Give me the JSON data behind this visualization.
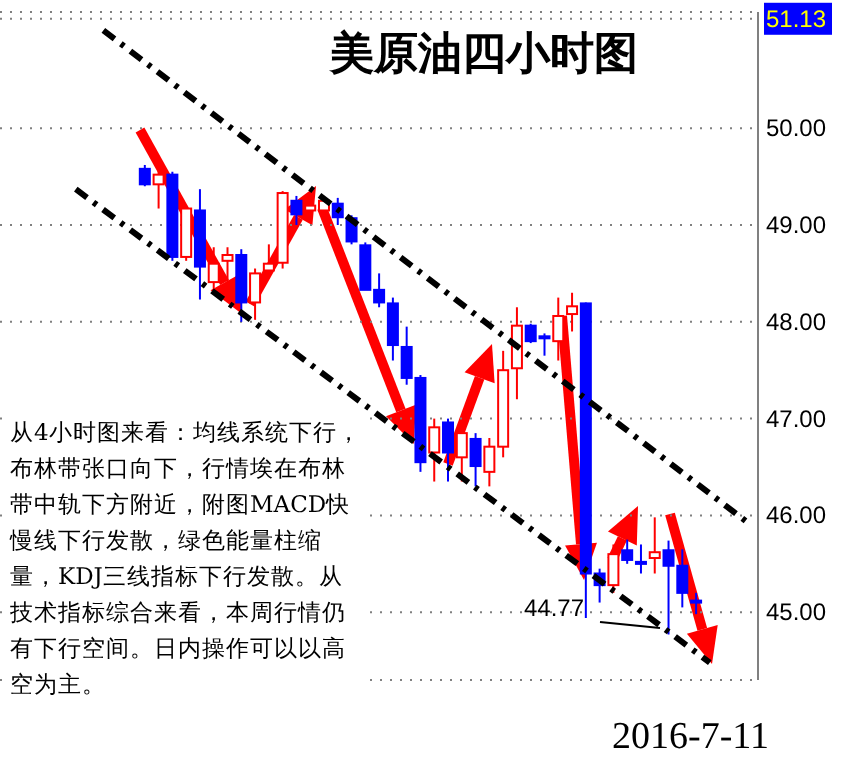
{
  "chart_data": {
    "type": "candlestick",
    "title": "美原油四小时图",
    "categories": [
      null,
      null,
      null,
      null,
      null,
      null,
      null,
      null,
      null,
      null,
      null,
      null,
      null,
      null,
      null,
      null,
      null,
      null,
      null,
      null,
      null,
      null,
      null,
      null,
      null,
      null,
      null,
      null,
      null,
      null,
      null,
      null,
      null,
      null,
      null,
      null,
      null,
      null,
      null,
      null,
      null,
      null,
      null,
      null,
      null,
      null,
      null,
      null,
      null,
      null,
      null,
      null,
      null,
      null,
      null
    ],
    "ohlc": [
      null,
      null,
      null,
      null,
      null,
      null,
      null,
      null,
      null,
      null,
      [
        49.58,
        49.62,
        49.4,
        49.42
      ],
      [
        49.42,
        49.6,
        49.17,
        49.52
      ],
      [
        49.52,
        49.55,
        48.63,
        48.67
      ],
      [
        48.67,
        49.2,
        48.63,
        49.17
      ],
      [
        49.15,
        49.37,
        48.23,
        48.57
      ],
      [
        48.41,
        48.77,
        48.3,
        48.6
      ],
      [
        48.63,
        48.77,
        48.23,
        48.69
      ],
      [
        48.69,
        48.75,
        48.0,
        48.2
      ],
      [
        48.2,
        48.55,
        48.02,
        48.5
      ],
      [
        48.53,
        48.8,
        48.45,
        48.6
      ],
      [
        48.61,
        49.35,
        48.55,
        49.33
      ],
      [
        49.25,
        49.3,
        49.0,
        49.11
      ],
      [
        49.15,
        49.3,
        49.1,
        49.2
      ],
      [
        49.15,
        49.3,
        49.05,
        49.25
      ],
      [
        49.22,
        49.28,
        49.0,
        49.08
      ],
      [
        49.07,
        49.1,
        48.8,
        48.83
      ],
      [
        48.79,
        48.82,
        48.33,
        48.33
      ],
      [
        48.33,
        48.5,
        48.15,
        48.2
      ],
      [
        48.19,
        48.25,
        47.6,
        47.76
      ],
      [
        47.74,
        47.95,
        47.35,
        47.42
      ],
      [
        47.42,
        47.45,
        46.45,
        46.55
      ],
      [
        46.65,
        47.0,
        46.35,
        46.91
      ],
      [
        46.96,
        47.0,
        46.35,
        46.65
      ],
      [
        46.6,
        46.9,
        46.35,
        46.85
      ],
      [
        46.79,
        46.85,
        46.3,
        46.51
      ],
      [
        46.45,
        46.8,
        46.3,
        46.71
      ],
      [
        46.71,
        47.7,
        46.6,
        47.5
      ],
      [
        47.52,
        48.15,
        47.2,
        47.96
      ],
      [
        47.96,
        47.98,
        47.78,
        47.8
      ],
      [
        47.85,
        47.88,
        47.65,
        47.84
      ],
      [
        47.8,
        48.25,
        47.6,
        48.06
      ],
      [
        48.08,
        48.3,
        47.9,
        48.16
      ],
      [
        48.19,
        48.2,
        44.94,
        45.4
      ],
      [
        45.4,
        45.45,
        45.1,
        45.28
      ],
      [
        45.28,
        45.7,
        45.2,
        45.6
      ],
      [
        45.64,
        45.75,
        45.5,
        45.54
      ],
      [
        45.52,
        45.7,
        45.4,
        45.5
      ],
      [
        45.56,
        45.98,
        45.4,
        45.62
      ],
      [
        45.64,
        45.74,
        44.77,
        45.48
      ],
      [
        45.48,
        45.65,
        45.05,
        45.2
      ],
      [
        45.12,
        45.2,
        44.98,
        45.1
      ],
      null,
      null,
      null,
      null
    ],
    "colors": [
      null,
      null,
      null,
      null,
      null,
      null,
      null,
      null,
      null,
      null,
      "#0000ff",
      "#ff0000",
      "#0000ff",
      "#ff0000",
      "#0000ff",
      "#ff0000",
      "#ff0000",
      "#0000ff",
      "#ff0000",
      "#ff0000",
      "#ff0000",
      "#0000ff",
      "#ff0000",
      "#ff0000",
      "#0000ff",
      "#0000ff",
      "#0000ff",
      "#0000ff",
      "#0000ff",
      "#0000ff",
      "#0000ff",
      "#ff0000",
      "#0000ff",
      "#ff0000",
      "#0000ff",
      "#ff0000",
      "#ff0000",
      "#ff0000",
      "#0000ff",
      "#0000ff",
      "#ff0000",
      "#ff0000",
      "#0000ff",
      "#0000ff",
      "#ff0000",
      "#0000ff",
      "#0000ff",
      "#ff0000",
      "#0000ff",
      "#0000ff",
      "#0000ff",
      null,
      null,
      null,
      null
    ],
    "series": [
      {
        "type": "line",
        "color": "#000000",
        "line_style": "dashed",
        "values": [
          null,
          null,
          null,
          null,
          null,
          null,
          null,
          51.01,
          null,
          null,
          null,
          null,
          null,
          null,
          null,
          null,
          null,
          null,
          null,
          null,
          null,
          null,
          null,
          null,
          null,
          null,
          null,
          null,
          null,
          null,
          null,
          null,
          null,
          null,
          null,
          null,
          null,
          null,
          null,
          null,
          null,
          null,
          null,
          null,
          null,
          null,
          null,
          null,
          null,
          null,
          null,
          null,
          null,
          null,
          45.9
        ]
      },
      {
        "type": "line",
        "color": "#000000",
        "line_style": "dashed",
        "values": [
          null,
          null,
          null,
          null,
          null,
          49.37,
          null,
          null,
          null,
          null,
          null,
          null,
          null,
          null,
          null,
          null,
          null,
          null,
          null,
          null,
          null,
          null,
          null,
          null,
          null,
          null,
          null,
          null,
          null,
          null,
          null,
          null,
          null,
          null,
          null,
          null,
          null,
          null,
          null,
          null,
          null,
          null,
          null,
          null,
          null,
          null,
          null,
          null,
          null,
          null,
          null,
          44.48,
          null,
          null,
          null
        ]
      }
    ],
    "ylim": [
      44.3,
      51.2
    ],
    "yticks": [
      {
        "value": 45,
        "label": "45.00"
      },
      {
        "value": 46,
        "label": "46.00"
      },
      {
        "value": 47,
        "label": "47.00"
      },
      {
        "value": 48,
        "label": "48.00"
      },
      {
        "value": 49,
        "label": "49.00"
      },
      {
        "value": 50,
        "label": "50.00"
      },
      51.13
    ],
    "grid": "y",
    "tick_labels": "y",
    "annotations": [
      "从4小时图来看：均线系统下行，布林带张口向下，行情埃在布林带中轨下方附近，附图MACD快慢线下行发散，绿色能量柱缩量，KDJ三线指标下行发散。从技术指标综合来看，本周行情仍有下行空间。日内操作可以以高空为主。",
      "44.77",
      "2016-7-11"
    ]
  }
}
